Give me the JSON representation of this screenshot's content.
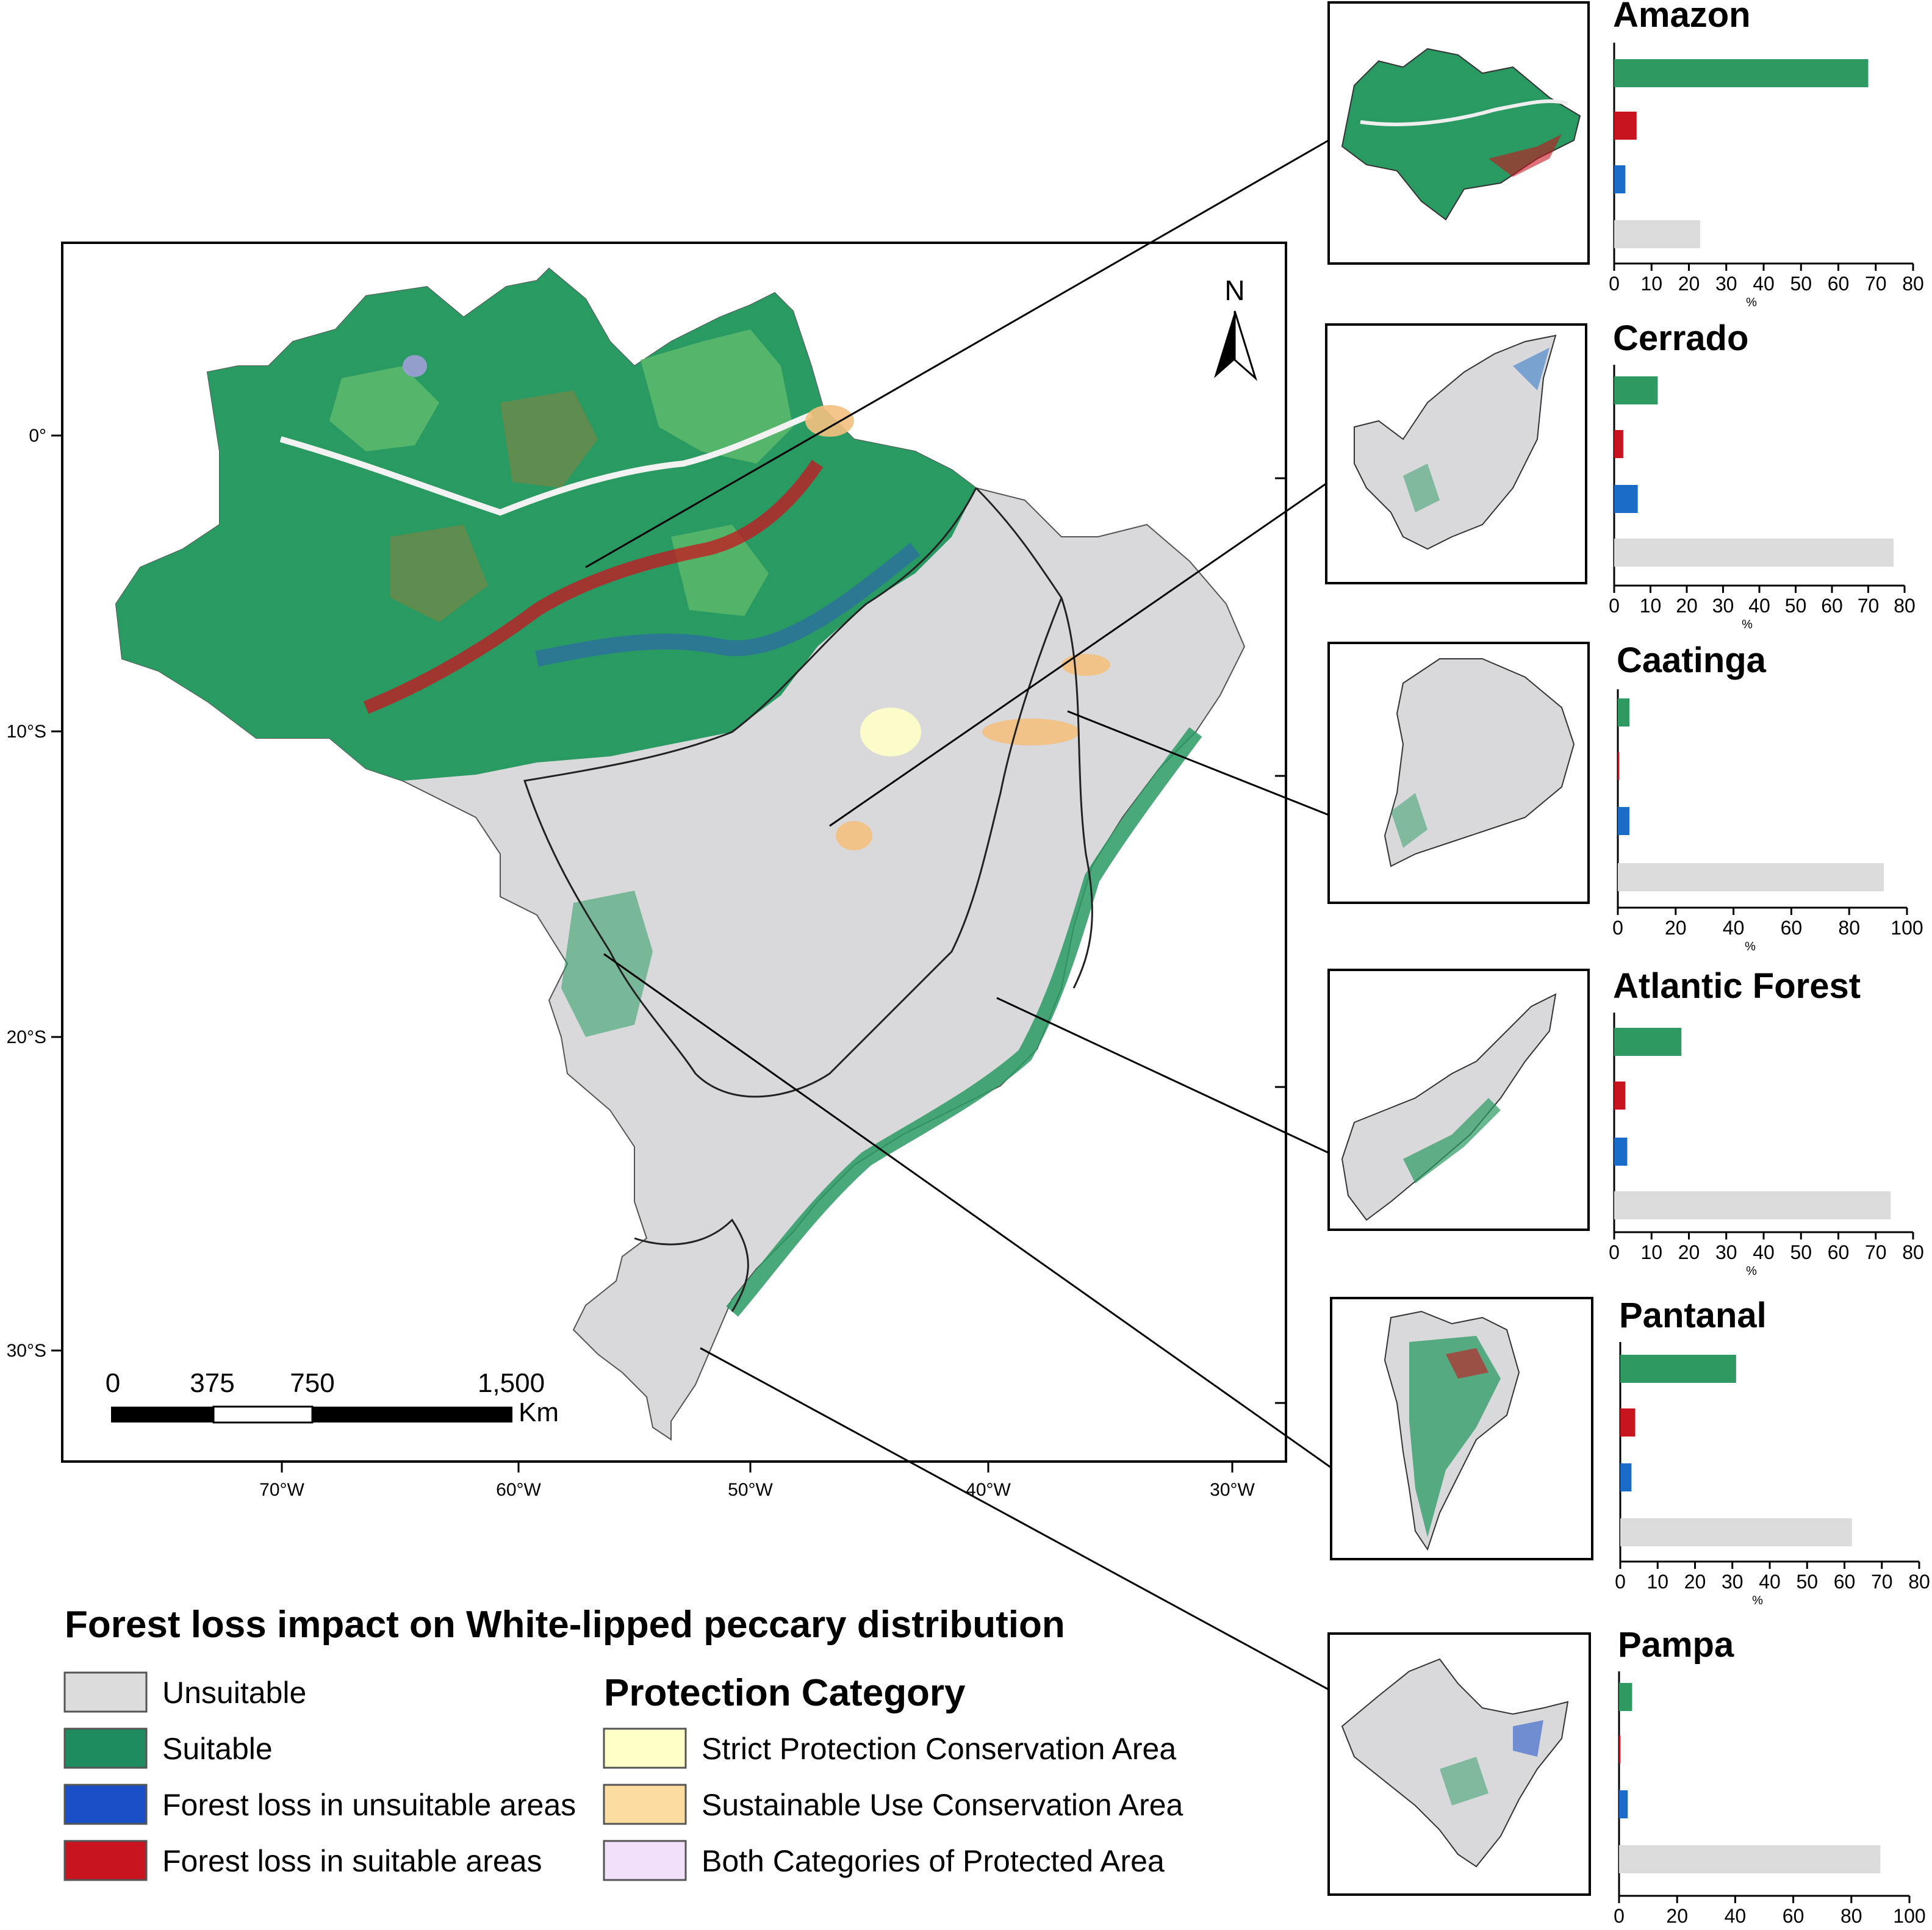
{
  "map": {
    "north_label": "N",
    "lat_labels": [
      "0°",
      "10°S",
      "20°S",
      "30°S"
    ],
    "lon_labels": [
      "70°W",
      "60°W",
      "50°W",
      "40°W",
      "30°W"
    ],
    "scale": {
      "ticks": [
        "0",
        "375",
        "750",
        "1,500"
      ],
      "unit": "Km"
    }
  },
  "legend": {
    "title": "Forest loss impact on White-lipped peccary distribution",
    "classes": [
      {
        "label": "Unsuitable",
        "color": "#dcdcdc"
      },
      {
        "label": "Suitable",
        "color": "#1e8c5e"
      },
      {
        "label": "Forest loss in unsuitable areas",
        "color": "#1a4fc8"
      },
      {
        "label": "Forest loss in suitable areas",
        "color": "#c8141e"
      }
    ],
    "protection_title": "Protection Category",
    "protection": [
      {
        "label": "Strict Protection Conservation Area",
        "color": "#ffffc8"
      },
      {
        "label": "Sustainable Use Conservation Area",
        "color": "#fcdca0"
      },
      {
        "label": "Both Categories of Protected Area",
        "color": "#f2e0fa"
      }
    ]
  },
  "colors": {
    "suitable": "#2e9a62",
    "loss_suitable": "#c8141e",
    "loss_unsuitable": "#1a6cc8",
    "unsuitable": "#dcdcdc"
  },
  "chart_data": [
    {
      "type": "bar",
      "title": "Amazon",
      "categories": [
        "Suitable",
        "Forest loss in suitable areas",
        "Forest loss in unsuitable areas",
        "Unsuitable"
      ],
      "values": [
        68,
        6,
        3,
        23
      ],
      "xlabel": "%",
      "xticks": [
        "0",
        "10",
        "20",
        "30",
        "40",
        "50",
        "60",
        "70",
        "80"
      ],
      "xlim": [
        0,
        80
      ]
    },
    {
      "type": "bar",
      "title": "Cerrado",
      "categories": [
        "Suitable",
        "Forest loss in suitable areas",
        "Forest loss in unsuitable areas",
        "Unsuitable"
      ],
      "values": [
        12,
        2.5,
        6.5,
        77
      ],
      "xlabel": "%",
      "xticks": [
        "0",
        "10",
        "20",
        "30",
        "40",
        "50",
        "60",
        "70",
        "80"
      ],
      "xlim": [
        0,
        80
      ]
    },
    {
      "type": "bar",
      "title": "Caatinga",
      "categories": [
        "Suitable",
        "Forest loss in suitable areas",
        "Forest loss in unsuitable areas",
        "Unsuitable"
      ],
      "values": [
        4,
        0.5,
        4,
        92
      ],
      "xlabel": "%",
      "xticks": [
        "0",
        "20",
        "40",
        "60",
        "80",
        "100"
      ],
      "xlim": [
        0,
        100
      ]
    },
    {
      "type": "bar",
      "title": "Atlantic Forest",
      "categories": [
        "Suitable",
        "Forest loss in suitable areas",
        "Forest loss in unsuitable areas",
        "Unsuitable"
      ],
      "values": [
        18,
        3,
        3.5,
        74
      ],
      "xlabel": "%",
      "xticks": [
        "0",
        "10",
        "20",
        "30",
        "40",
        "50",
        "60",
        "70",
        "80"
      ],
      "xlim": [
        0,
        80
      ]
    },
    {
      "type": "bar",
      "title": "Pantanal",
      "categories": [
        "Suitable",
        "Forest loss in suitable areas",
        "Forest loss in unsuitable areas",
        "Unsuitable"
      ],
      "values": [
        31,
        4,
        3,
        62
      ],
      "xlabel": "%",
      "xticks": [
        "0",
        "10",
        "20",
        "30",
        "40",
        "50",
        "60",
        "70",
        "80"
      ],
      "xlim": [
        0,
        80
      ]
    },
    {
      "type": "bar",
      "title": "Pampa",
      "categories": [
        "Suitable",
        "Forest loss in suitable areas",
        "Forest loss in unsuitable areas",
        "Unsuitable"
      ],
      "values": [
        4.5,
        0.5,
        3,
        90
      ],
      "xlabel": "%",
      "xticks": [
        "0",
        "20",
        "40",
        "60",
        "80",
        "100"
      ],
      "xlim": [
        0,
        100
      ]
    }
  ]
}
